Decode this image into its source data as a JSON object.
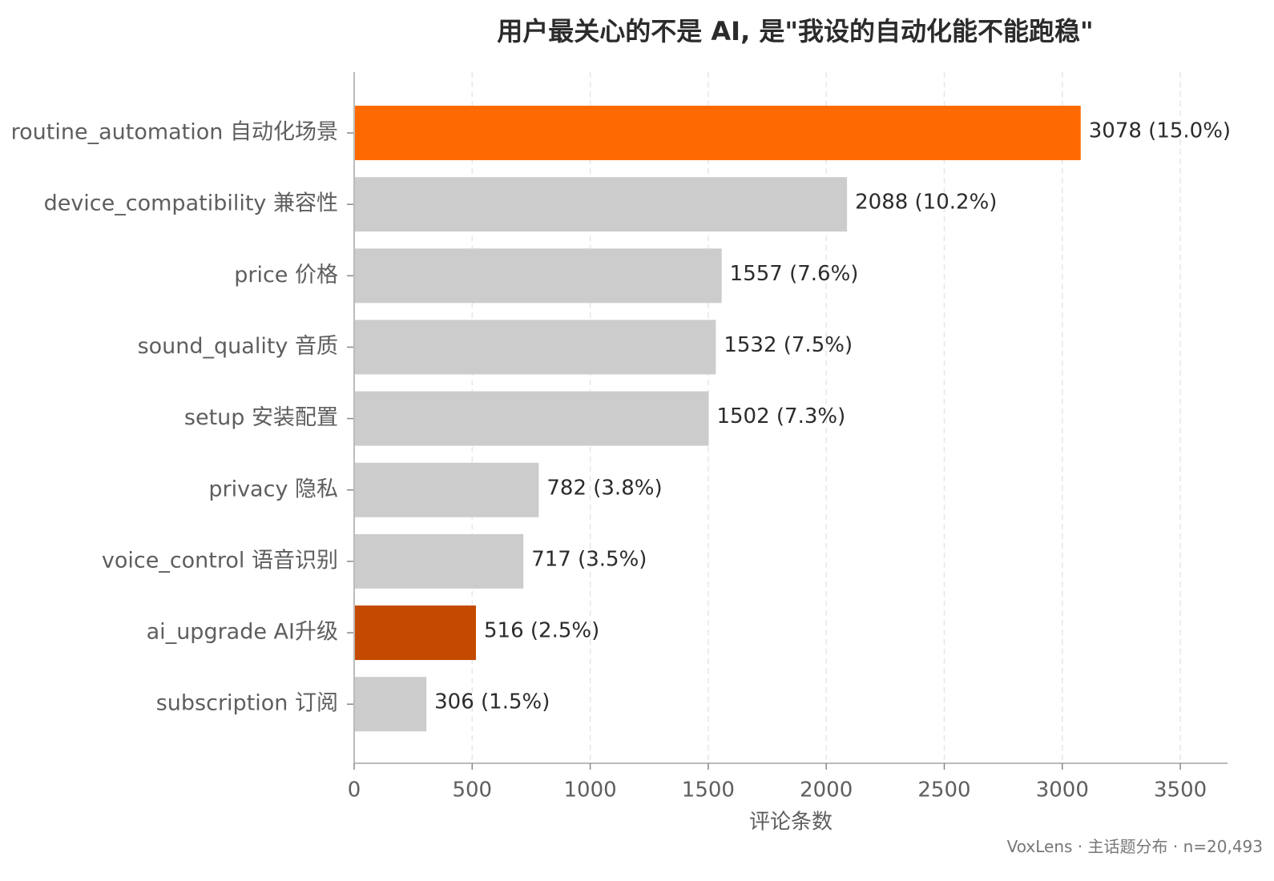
{
  "chart_data": {
    "type": "bar",
    "orientation": "horizontal",
    "title": "用户最关心的不是 AI, 是\"我设的自动化能不能跑稳\"",
    "xlabel": "评论条数",
    "ylabel": "",
    "xlim": [
      0,
      3700
    ],
    "xticks": [
      0,
      500,
      1000,
      1500,
      2000,
      2500,
      3000,
      3500
    ],
    "grid": "vertical dashed",
    "categories": [
      "routine_automation 自动化场景",
      "device_compatibility 兼容性",
      "price 价格",
      "sound_quality 音质",
      "setup 安装配置",
      "privacy 隐私",
      "voice_control 语音识别",
      "ai_upgrade AI升级",
      "subscription 订阅"
    ],
    "values": [
      3078,
      2088,
      1557,
      1532,
      1502,
      782,
      717,
      516,
      306
    ],
    "percent_labels": [
      "(15.0%)",
      "(10.2%)",
      "(7.6%)",
      "(7.5%)",
      "(7.3%)",
      "(3.8%)",
      "(3.5%)",
      "(2.5%)",
      "(1.5%)"
    ],
    "bar_colors": [
      "#ff6a00",
      "#cccccc",
      "#cccccc",
      "#cccccc",
      "#cccccc",
      "#cccccc",
      "#cccccc",
      "#c44a00",
      "#cccccc"
    ]
  },
  "footer": "VoxLens · 主话题分布 · n=20,493"
}
